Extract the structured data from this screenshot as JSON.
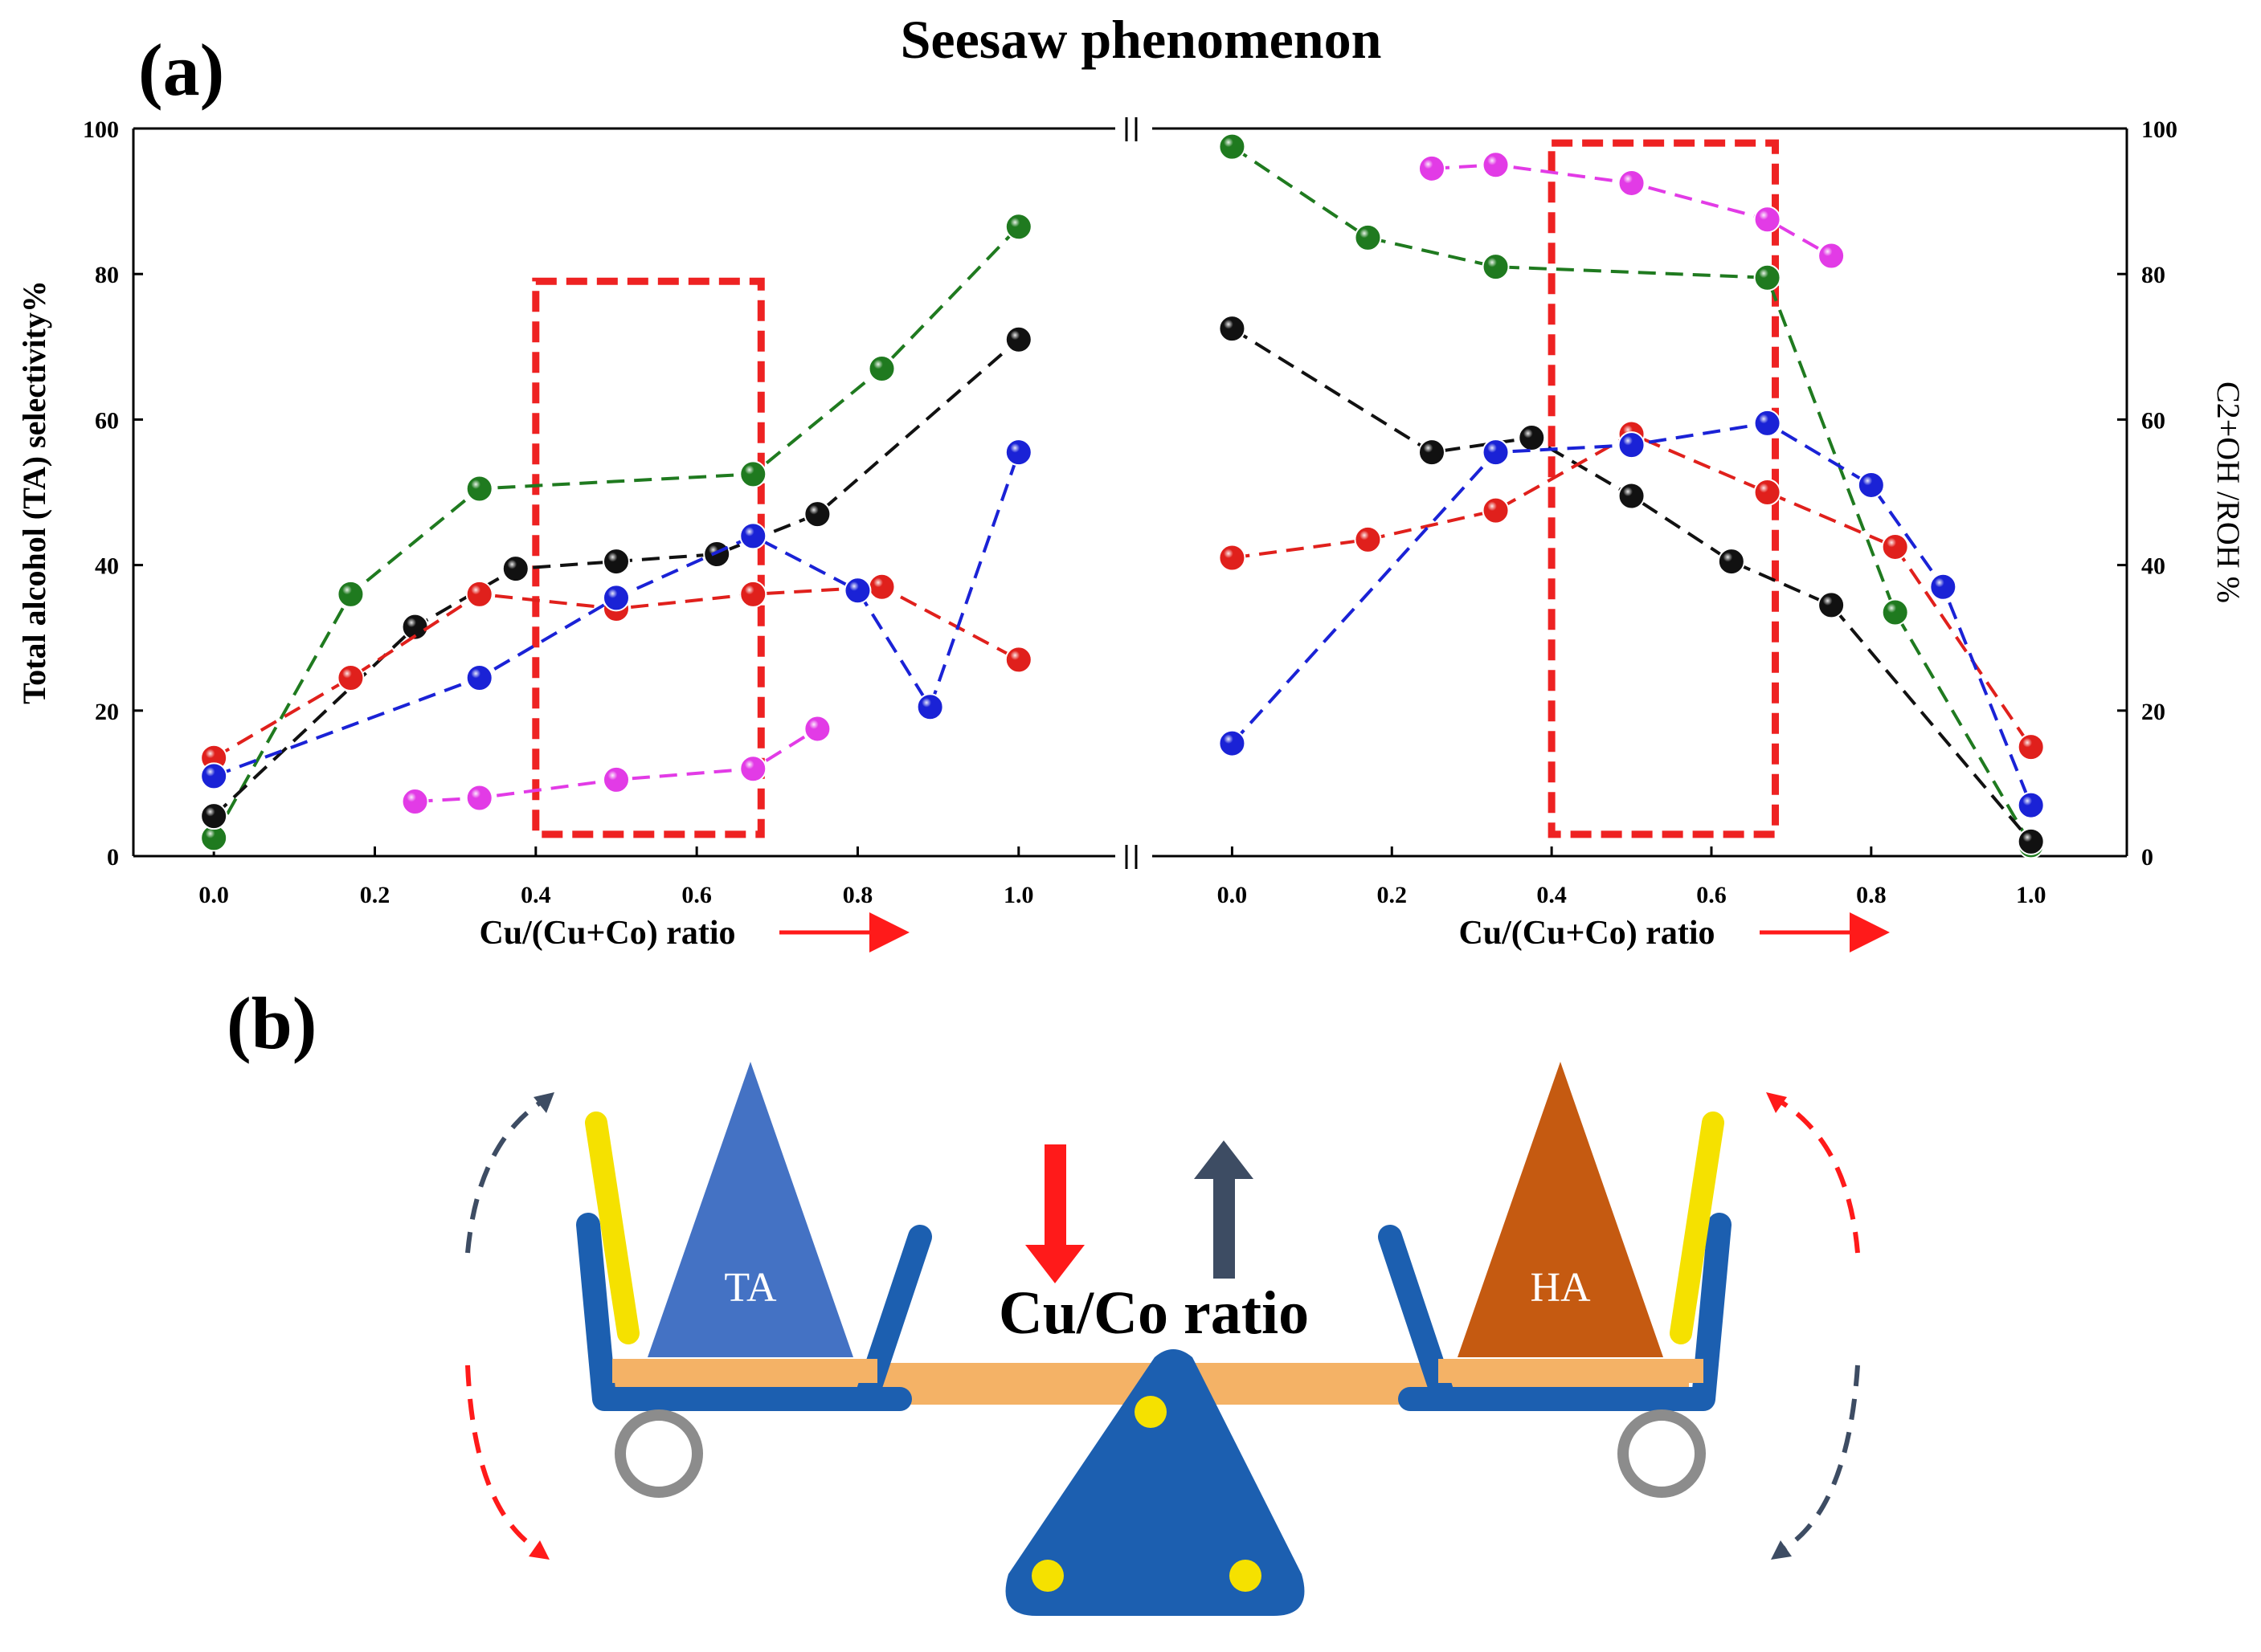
{
  "figure": {
    "panel_a_label": "(a)",
    "panel_b_label": "(b)",
    "title": "Seesaw phenomenon",
    "colors": {
      "green": "#1f7a1f",
      "black": "#111111",
      "red": "#e0201c",
      "blue": "#1a22d6",
      "magenta": "#e23be6",
      "box": "#ee2222",
      "arrow_red": "#ff1a1a",
      "arrow_dark": "#3d4c63"
    }
  },
  "chart_data": [
    {
      "type": "scatter",
      "title": "Seesaw phenomenon",
      "xlabel": "Cu/(Cu+Co) ratio",
      "ylabel": "Total alcohol (TA) selectivity%",
      "xlim": [
        -0.1,
        1.12
      ],
      "ylim": [
        0,
        100
      ],
      "x_ticks": [
        "0.0",
        "0.2",
        "0.4",
        "0.6",
        "0.8",
        "1.0"
      ],
      "y_ticks": [
        "0",
        "20",
        "40",
        "60",
        "80",
        "100"
      ],
      "highlight_range_x": [
        0.4,
        0.68
      ],
      "highlight_range_y": [
        3,
        79
      ],
      "series": [
        {
          "name": "green",
          "x": [
            0.0,
            0.17,
            0.33,
            0.67,
            0.83,
            1.0
          ],
          "values": [
            2.5,
            36,
            50.5,
            52.5,
            67,
            86.5
          ]
        },
        {
          "name": "black",
          "x": [
            0.0,
            0.25,
            0.375,
            0.5,
            0.625,
            0.75,
            1.0
          ],
          "values": [
            5.5,
            31.5,
            39.5,
            40.5,
            41.5,
            47,
            71
          ]
        },
        {
          "name": "red",
          "x": [
            0.0,
            0.17,
            0.33,
            0.5,
            0.67,
            0.83,
            1.0
          ],
          "values": [
            13.5,
            24.5,
            36,
            34,
            36,
            37,
            27
          ]
        },
        {
          "name": "blue",
          "x": [
            0.0,
            0.33,
            0.5,
            0.67,
            0.8,
            0.89,
            1.0
          ],
          "values": [
            11,
            24.5,
            35.5,
            44,
            36.5,
            20.5,
            55.5
          ]
        },
        {
          "name": "magenta",
          "x": [
            0.25,
            0.33,
            0.5,
            0.67,
            0.75
          ],
          "values": [
            7.5,
            8,
            10.5,
            12,
            17.5
          ]
        }
      ]
    },
    {
      "type": "scatter",
      "xlabel": "Cu/(Cu+Co) ratio",
      "ylabel": "C2+OH /ROH %",
      "xlim": [
        -0.1,
        1.12
      ],
      "ylim": [
        0,
        100
      ],
      "x_ticks": [
        "0.0",
        "0.2",
        "0.4",
        "0.6",
        "0.8",
        "1.0"
      ],
      "y_ticks": [
        "0",
        "20",
        "40",
        "60",
        "80",
        "100"
      ],
      "highlight_range_x": [
        0.4,
        0.68
      ],
      "highlight_range_y": [
        3,
        98
      ],
      "series": [
        {
          "name": "green",
          "x": [
            0.0,
            0.17,
            0.33,
            0.67,
            0.83,
            1.0
          ],
          "values": [
            97.5,
            85,
            81,
            79.5,
            33.5,
            1.5
          ]
        },
        {
          "name": "black",
          "x": [
            0.0,
            0.25,
            0.375,
            0.5,
            0.625,
            0.75,
            1.0
          ],
          "values": [
            72.5,
            55.5,
            57.5,
            49.5,
            40.5,
            34.5,
            2
          ]
        },
        {
          "name": "red",
          "x": [
            0.0,
            0.17,
            0.33,
            0.5,
            0.67,
            0.83,
            1.0
          ],
          "values": [
            41,
            43.5,
            47.5,
            58,
            50,
            42.5,
            15
          ]
        },
        {
          "name": "blue",
          "x": [
            0.0,
            0.33,
            0.5,
            0.67,
            0.8,
            0.89,
            1.0
          ],
          "values": [
            15.5,
            55.5,
            56.5,
            59.5,
            51,
            37,
            7
          ]
        },
        {
          "name": "magenta",
          "x": [
            0.25,
            0.33,
            0.5,
            0.67,
            0.75
          ],
          "values": [
            94.5,
            95,
            92.5,
            87.5,
            82.5
          ]
        }
      ]
    }
  ],
  "diagram": {
    "left_weight_label": "TA",
    "right_weight_label": "HA",
    "center_label": "Cu/Co ratio",
    "left_color": "#4472c4",
    "right_color": "#c55a11",
    "frame_color": "#1c5fb0",
    "plank_color": "#f4b266",
    "handle_color": "#f5e100",
    "wheel_color": "#8c8c8c",
    "pivot_color": "#1c5fb0",
    "dot_color": "#f5e100"
  }
}
